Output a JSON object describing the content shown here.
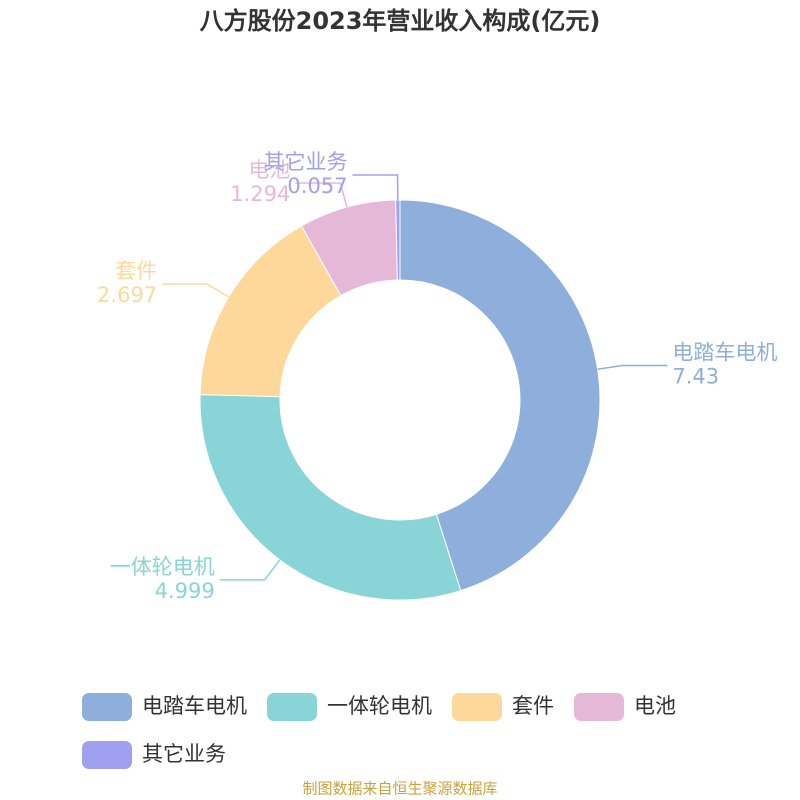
{
  "chart_data": {
    "type": "donut",
    "title": "八方股份2023年营业收入构成(亿元)",
    "categories": [
      "电踏车电机",
      "一体轮电机",
      "套件",
      "电池",
      "其它业务"
    ],
    "values": [
      7.43,
      4.999,
      2.697,
      1.294,
      0.057
    ],
    "colors": [
      "#8eaedb",
      "#88d4d6",
      "#fdd89a",
      "#e6b8d8",
      "#a0a0f0"
    ],
    "source": "制图数据来自恒生聚源数据库"
  }
}
